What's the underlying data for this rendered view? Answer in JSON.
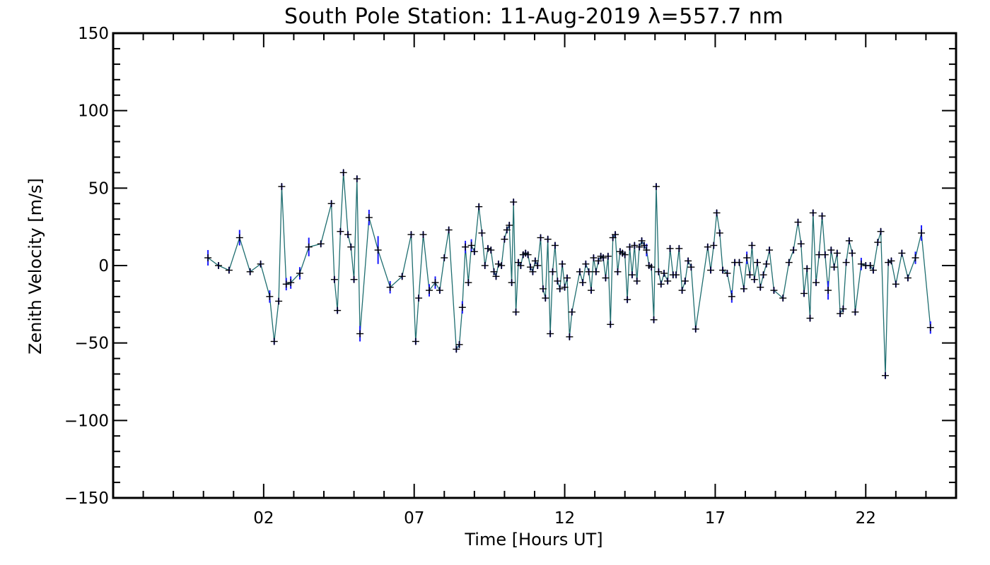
{
  "chart_data": {
    "type": "line",
    "title": "South Pole Station: 11-Aug-2019 λ=557.7 nm",
    "xlabel": "Time [Hours UT]",
    "ylabel": "Zenith Velocity [m/s]",
    "xlim": [
      -3,
      25
    ],
    "ylim": [
      -150,
      150
    ],
    "xticks": [
      2,
      7,
      12,
      17,
      22
    ],
    "xtick_labels": [
      "02",
      "07",
      "12",
      "17",
      "22"
    ],
    "yticks": [
      -150,
      -100,
      -50,
      0,
      50,
      100,
      150
    ],
    "ytick_labels": [
      "−150",
      "−100",
      "−50",
      "0",
      "50",
      "100",
      "150"
    ],
    "line_color": "#1f6e70",
    "marker_color": "#000000",
    "errorbar_color": "#1a1aff",
    "series": [
      {
        "name": "Zenith velocity",
        "points": [
          {
            "x": 0.15,
            "y": 5,
            "err": 5
          },
          {
            "x": 0.5,
            "y": 0,
            "err": 2
          },
          {
            "x": 0.85,
            "y": -3,
            "err": 2
          },
          {
            "x": 1.2,
            "y": 18,
            "err": 5
          },
          {
            "x": 1.55,
            "y": -4,
            "err": 2
          },
          {
            "x": 1.9,
            "y": 1,
            "err": 2
          },
          {
            "x": 2.2,
            "y": -20,
            "err": 4
          },
          {
            "x": 2.35,
            "y": -49,
            "err": 2
          },
          {
            "x": 2.5,
            "y": -23,
            "err": 2
          },
          {
            "x": 2.6,
            "y": 51,
            "err": 2
          },
          {
            "x": 2.75,
            "y": -12,
            "err": 4
          },
          {
            "x": 2.9,
            "y": -11,
            "err": 4
          },
          {
            "x": 3.2,
            "y": -5,
            "err": 4
          },
          {
            "x": 3.5,
            "y": 12,
            "err": 6
          },
          {
            "x": 3.9,
            "y": 14,
            "err": 2
          },
          {
            "x": 4.25,
            "y": 40,
            "err": 2
          },
          {
            "x": 4.35,
            "y": -9,
            "err": 2
          },
          {
            "x": 4.45,
            "y": -29,
            "err": 2
          },
          {
            "x": 4.55,
            "y": 22,
            "err": 2
          },
          {
            "x": 4.65,
            "y": 60,
            "err": 2
          },
          {
            "x": 4.8,
            "y": 20,
            "err": 2
          },
          {
            "x": 4.9,
            "y": 12,
            "err": 2
          },
          {
            "x": 5.0,
            "y": -9,
            "err": 2
          },
          {
            "x": 5.1,
            "y": 56,
            "err": 2
          },
          {
            "x": 5.2,
            "y": -44,
            "err": 5
          },
          {
            "x": 5.5,
            "y": 31,
            "err": 5
          },
          {
            "x": 5.8,
            "y": 10,
            "err": 9
          },
          {
            "x": 6.2,
            "y": -14,
            "err": 4
          },
          {
            "x": 6.6,
            "y": -7,
            "err": 2
          },
          {
            "x": 6.9,
            "y": 20,
            "err": 2
          },
          {
            "x": 7.05,
            "y": -49,
            "err": 2
          },
          {
            "x": 7.15,
            "y": -21,
            "err": 2
          },
          {
            "x": 7.3,
            "y": 20,
            "err": 2
          },
          {
            "x": 7.5,
            "y": -16,
            "err": 4
          },
          {
            "x": 7.7,
            "y": -11,
            "err": 4
          },
          {
            "x": 7.85,
            "y": -16,
            "err": 2
          },
          {
            "x": 8.0,
            "y": 5,
            "err": 2
          },
          {
            "x": 8.15,
            "y": 23,
            "err": 2
          },
          {
            "x": 8.4,
            "y": -54,
            "err": 2
          },
          {
            "x": 8.5,
            "y": -51,
            "err": 2
          },
          {
            "x": 8.6,
            "y": -27,
            "err": 4
          },
          {
            "x": 8.7,
            "y": 12,
            "err": 4
          },
          {
            "x": 8.8,
            "y": -11,
            "err": 2
          },
          {
            "x": 8.9,
            "y": 13,
            "err": 4
          },
          {
            "x": 9.0,
            "y": 9,
            "err": 2
          },
          {
            "x": 9.15,
            "y": 38,
            "err": 2
          },
          {
            "x": 9.25,
            "y": 21,
            "err": 2
          },
          {
            "x": 9.35,
            "y": 0,
            "err": 2
          },
          {
            "x": 9.45,
            "y": 11,
            "err": 2
          },
          {
            "x": 9.55,
            "y": 10,
            "err": 2
          },
          {
            "x": 9.65,
            "y": -4,
            "err": 2
          },
          {
            "x": 9.72,
            "y": -7,
            "err": 2
          },
          {
            "x": 9.8,
            "y": 1,
            "err": 2
          },
          {
            "x": 9.9,
            "y": 0,
            "err": 2
          },
          {
            "x": 10.0,
            "y": 17,
            "err": 2
          },
          {
            "x": 10.08,
            "y": 23,
            "err": 2
          },
          {
            "x": 10.16,
            "y": 26,
            "err": 2
          },
          {
            "x": 10.24,
            "y": -11,
            "err": 2
          },
          {
            "x": 10.3,
            "y": 41,
            "err": 2
          },
          {
            "x": 10.38,
            "y": -30,
            "err": 2
          },
          {
            "x": 10.46,
            "y": 2,
            "err": 2
          },
          {
            "x": 10.54,
            "y": 0,
            "err": 2
          },
          {
            "x": 10.62,
            "y": 7,
            "err": 2
          },
          {
            "x": 10.7,
            "y": 8,
            "err": 2
          },
          {
            "x": 10.78,
            "y": 7,
            "err": 2
          },
          {
            "x": 10.86,
            "y": -1,
            "err": 2
          },
          {
            "x": 10.94,
            "y": -4,
            "err": 2
          },
          {
            "x": 11.02,
            "y": 3,
            "err": 2
          },
          {
            "x": 11.1,
            "y": 0,
            "err": 2
          },
          {
            "x": 11.2,
            "y": 18,
            "err": 2
          },
          {
            "x": 11.28,
            "y": -15,
            "err": 2
          },
          {
            "x": 11.36,
            "y": -21,
            "err": 2
          },
          {
            "x": 11.44,
            "y": 17,
            "err": 2
          },
          {
            "x": 11.52,
            "y": -44,
            "err": 2
          },
          {
            "x": 11.6,
            "y": -4,
            "err": 2
          },
          {
            "x": 11.68,
            "y": 13,
            "err": 2
          },
          {
            "x": 11.76,
            "y": -10,
            "err": 2
          },
          {
            "x": 11.84,
            "y": -15,
            "err": 2
          },
          {
            "x": 11.92,
            "y": 1,
            "err": 2
          },
          {
            "x": 12.0,
            "y": -14,
            "err": 2
          },
          {
            "x": 12.08,
            "y": -8,
            "err": 2
          },
          {
            "x": 12.16,
            "y": -46,
            "err": 2
          },
          {
            "x": 12.24,
            "y": -30,
            "err": 2
          },
          {
            "x": 12.5,
            "y": -4,
            "err": 2
          },
          {
            "x": 12.6,
            "y": -11,
            "err": 2
          },
          {
            "x": 12.7,
            "y": 1,
            "err": 2
          },
          {
            "x": 12.8,
            "y": -4,
            "err": 2
          },
          {
            "x": 12.88,
            "y": -16,
            "err": 2
          },
          {
            "x": 12.96,
            "y": 5,
            "err": 2
          },
          {
            "x": 13.04,
            "y": -4,
            "err": 2
          },
          {
            "x": 13.12,
            "y": 3,
            "err": 2
          },
          {
            "x": 13.2,
            "y": 6,
            "err": 2
          },
          {
            "x": 13.28,
            "y": 5,
            "err": 2
          },
          {
            "x": 13.36,
            "y": -8,
            "err": 2
          },
          {
            "x": 13.44,
            "y": 6,
            "err": 2
          },
          {
            "x": 13.52,
            "y": -38,
            "err": 2
          },
          {
            "x": 13.6,
            "y": 18,
            "err": 2
          },
          {
            "x": 13.68,
            "y": 20,
            "err": 2
          },
          {
            "x": 13.76,
            "y": -4,
            "err": 2
          },
          {
            "x": 13.84,
            "y": 9,
            "err": 2
          },
          {
            "x": 13.92,
            "y": 8,
            "err": 2
          },
          {
            "x": 14.0,
            "y": 7,
            "err": 2
          },
          {
            "x": 14.08,
            "y": -22,
            "err": 2
          },
          {
            "x": 14.16,
            "y": 12,
            "err": 2
          },
          {
            "x": 14.24,
            "y": -6,
            "err": 2
          },
          {
            "x": 14.32,
            "y": 13,
            "err": 2
          },
          {
            "x": 14.4,
            "y": -10,
            "err": 2
          },
          {
            "x": 14.48,
            "y": 12,
            "err": 2
          },
          {
            "x": 14.56,
            "y": 16,
            "err": 2
          },
          {
            "x": 14.64,
            "y": 13,
            "err": 2
          },
          {
            "x": 14.72,
            "y": 10,
            "err": 4
          },
          {
            "x": 14.8,
            "y": 0,
            "err": 2
          },
          {
            "x": 14.88,
            "y": -1,
            "err": 2
          },
          {
            "x": 14.96,
            "y": -35,
            "err": 2
          },
          {
            "x": 15.04,
            "y": 51,
            "err": 2
          },
          {
            "x": 15.12,
            "y": -4,
            "err": 2
          },
          {
            "x": 15.2,
            "y": -12,
            "err": 2
          },
          {
            "x": 15.3,
            "y": -5,
            "err": 2
          },
          {
            "x": 15.42,
            "y": -10,
            "err": 2
          },
          {
            "x": 15.5,
            "y": 11,
            "err": 2
          },
          {
            "x": 15.6,
            "y": -6,
            "err": 2
          },
          {
            "x": 15.7,
            "y": -6,
            "err": 2
          },
          {
            "x": 15.8,
            "y": 11,
            "err": 2
          },
          {
            "x": 15.9,
            "y": -16,
            "err": 2
          },
          {
            "x": 16.0,
            "y": -10,
            "err": 2
          },
          {
            "x": 16.1,
            "y": 3,
            "err": 2
          },
          {
            "x": 16.2,
            "y": -1,
            "err": 2
          },
          {
            "x": 16.35,
            "y": -41,
            "err": 2
          },
          {
            "x": 16.75,
            "y": 12,
            "err": 2
          },
          {
            "x": 16.85,
            "y": -3,
            "err": 2
          },
          {
            "x": 16.95,
            "y": 13,
            "err": 2
          },
          {
            "x": 17.05,
            "y": 34,
            "err": 2
          },
          {
            "x": 17.15,
            "y": 21,
            "err": 2
          },
          {
            "x": 17.25,
            "y": -3,
            "err": 2
          },
          {
            "x": 17.4,
            "y": -5,
            "err": 2
          },
          {
            "x": 17.55,
            "y": -20,
            "err": 4
          },
          {
            "x": 17.65,
            "y": 2,
            "err": 2
          },
          {
            "x": 17.8,
            "y": 2,
            "err": 2
          },
          {
            "x": 17.95,
            "y": -15,
            "err": 2
          },
          {
            "x": 18.05,
            "y": 5,
            "err": 4
          },
          {
            "x": 18.15,
            "y": -6,
            "err": 2
          },
          {
            "x": 18.22,
            "y": 13,
            "err": 2
          },
          {
            "x": 18.3,
            "y": -9,
            "err": 2
          },
          {
            "x": 18.4,
            "y": 2,
            "err": 2
          },
          {
            "x": 18.5,
            "y": -14,
            "err": 2
          },
          {
            "x": 18.6,
            "y": -6,
            "err": 2
          },
          {
            "x": 18.7,
            "y": 1,
            "err": 2
          },
          {
            "x": 18.8,
            "y": 10,
            "err": 2
          },
          {
            "x": 18.95,
            "y": -16,
            "err": 2
          },
          {
            "x": 19.25,
            "y": -21,
            "err": 2
          },
          {
            "x": 19.45,
            "y": 2,
            "err": 2
          },
          {
            "x": 19.6,
            "y": 10,
            "err": 2
          },
          {
            "x": 19.75,
            "y": 28,
            "err": 2
          },
          {
            "x": 19.85,
            "y": 14,
            "err": 2
          },
          {
            "x": 19.95,
            "y": -18,
            "err": 2
          },
          {
            "x": 20.05,
            "y": -2,
            "err": 2
          },
          {
            "x": 20.15,
            "y": -34,
            "err": 2
          },
          {
            "x": 20.25,
            "y": 34,
            "err": 2
          },
          {
            "x": 20.35,
            "y": -11,
            "err": 2
          },
          {
            "x": 20.45,
            "y": 7,
            "err": 2
          },
          {
            "x": 20.55,
            "y": 32,
            "err": 2
          },
          {
            "x": 20.65,
            "y": 7,
            "err": 2
          },
          {
            "x": 20.75,
            "y": -16,
            "err": 6
          },
          {
            "x": 20.85,
            "y": 10,
            "err": 2
          },
          {
            "x": 20.95,
            "y": -1,
            "err": 2
          },
          {
            "x": 21.05,
            "y": 8,
            "err": 2
          },
          {
            "x": 21.15,
            "y": -31,
            "err": 2
          },
          {
            "x": 21.25,
            "y": -28,
            "err": 2
          },
          {
            "x": 21.35,
            "y": 2,
            "err": 2
          },
          {
            "x": 21.45,
            "y": 16,
            "err": 2
          },
          {
            "x": 21.55,
            "y": 8,
            "err": 2
          },
          {
            "x": 21.65,
            "y": -30,
            "err": 2
          },
          {
            "x": 21.85,
            "y": 1,
            "err": 4
          },
          {
            "x": 22.0,
            "y": 0,
            "err": 2
          },
          {
            "x": 22.15,
            "y": 0,
            "err": 2
          },
          {
            "x": 22.25,
            "y": -3,
            "err": 2
          },
          {
            "x": 22.4,
            "y": 15,
            "err": 2
          },
          {
            "x": 22.5,
            "y": 22,
            "err": 2
          },
          {
            "x": 22.65,
            "y": -71,
            "err": 2
          },
          {
            "x": 22.75,
            "y": 2,
            "err": 2
          },
          {
            "x": 22.85,
            "y": 3,
            "err": 2
          },
          {
            "x": 23.0,
            "y": -12,
            "err": 2
          },
          {
            "x": 23.2,
            "y": 8,
            "err": 2
          },
          {
            "x": 23.4,
            "y": -8,
            "err": 2
          },
          {
            "x": 23.65,
            "y": 5,
            "err": 4
          },
          {
            "x": 23.85,
            "y": 21,
            "err": 5
          },
          {
            "x": 24.15,
            "y": -40,
            "err": 4
          }
        ]
      }
    ]
  }
}
